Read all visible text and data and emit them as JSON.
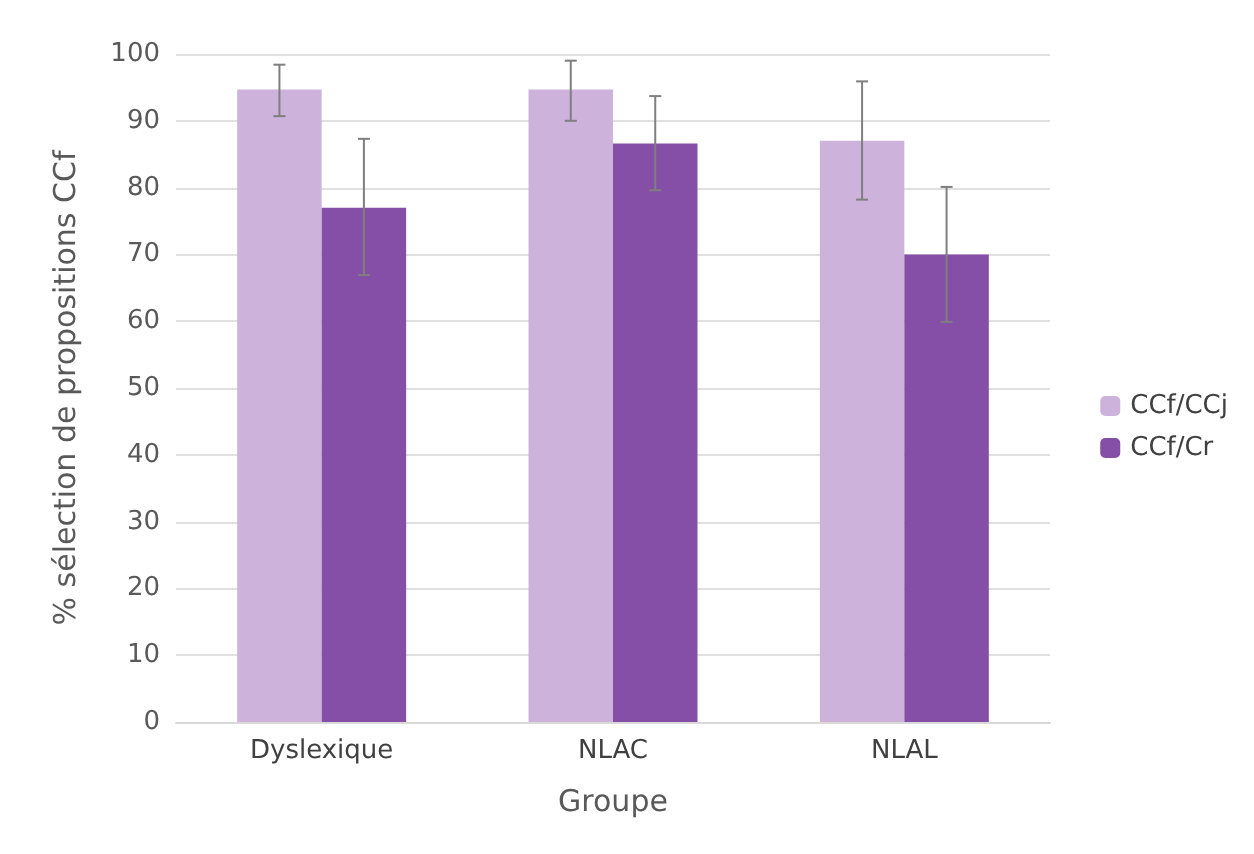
{
  "chart_data": {
    "type": "bar",
    "xlabel": "Groupe",
    "ylabel": "% sélection de propositions CCf",
    "categories": [
      "Dyslexique",
      "NLAC",
      "NLAL"
    ],
    "series": [
      {
        "name": "CCf/CCj",
        "color": "#cdb3dc",
        "values": [
          94.7,
          94.7,
          87.0
        ],
        "errors": [
          [
            90.7,
            98.4
          ],
          [
            90.0,
            99.0
          ],
          [
            78.2,
            95.9
          ]
        ]
      },
      {
        "name": "CCf/Cr",
        "color": "#854ea7",
        "values": [
          77.0,
          86.6,
          70.0
        ],
        "errors": [
          [
            66.9,
            87.3
          ],
          [
            79.6,
            93.7
          ],
          [
            59.9,
            80.1
          ]
        ]
      }
    ],
    "ylim": [
      0,
      100
    ],
    "yticks": [
      0,
      10,
      20,
      30,
      40,
      50,
      60,
      70,
      80,
      90,
      100
    ],
    "grid": "y",
    "legend": "right"
  }
}
